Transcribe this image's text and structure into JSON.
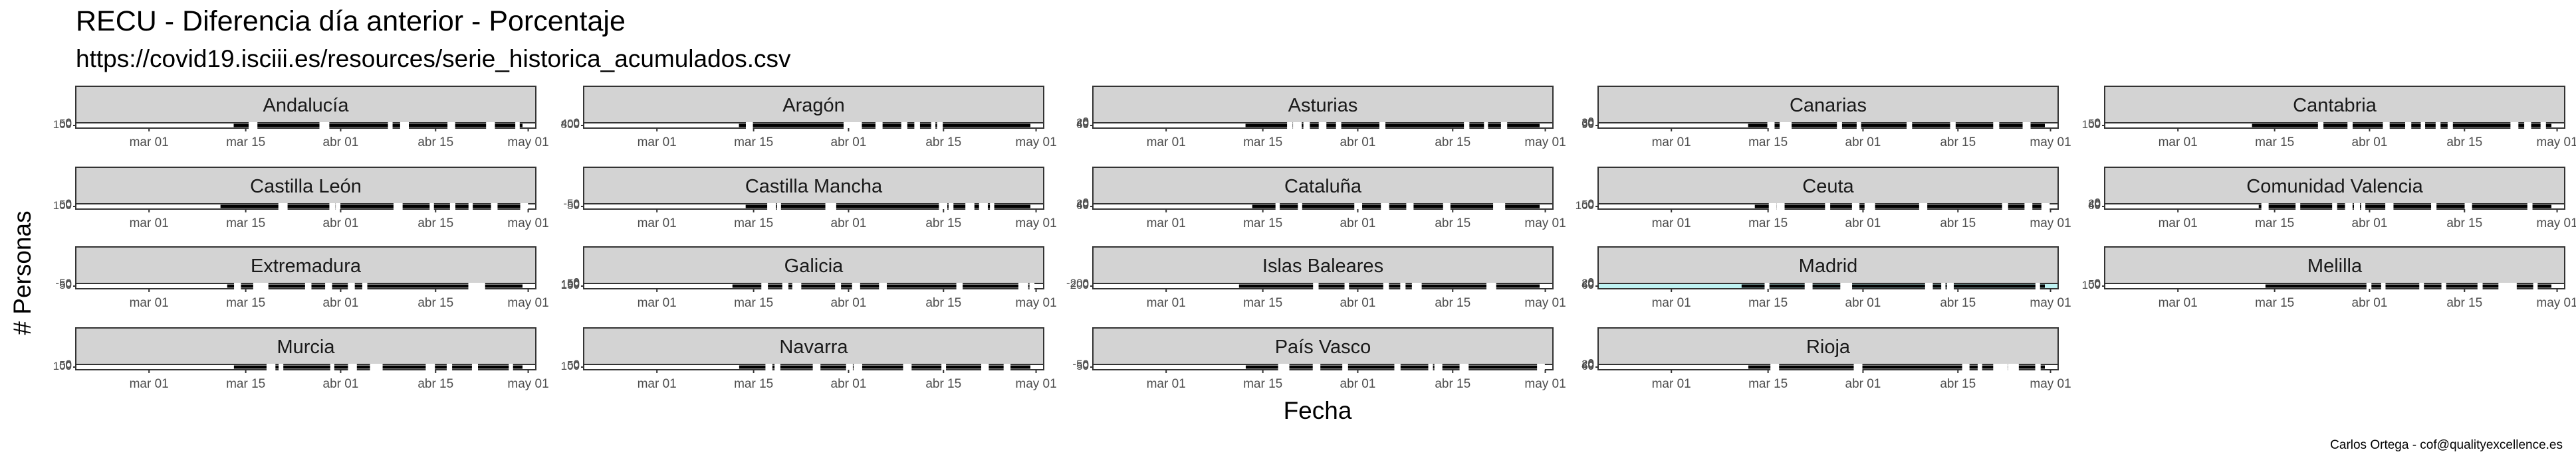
{
  "title": "RECU - Diferencia día anterior - Porcentaje",
  "subtitle": "https://covid19.isciii.es/resources/serie_historica_acumulados.csv",
  "caption": "Carlos Ortega - cof@qualityexcellence.es",
  "chart_data": {
    "type": "line",
    "xlabel": "Fecha",
    "ylabel": "# Personas",
    "x_ticks": [
      "mar 01",
      "mar 15",
      "abr 01",
      "abr 15",
      "may 01"
    ],
    "grid": false,
    "facets": [
      {
        "name": "Andalucía",
        "y_ticks": [
          "100",
          "50",
          "0"
        ],
        "highlight": false
      },
      {
        "name": "Aragón",
        "y_ticks": [
          "800",
          "400",
          "0"
        ],
        "highlight": false
      },
      {
        "name": "Asturias",
        "y_ticks": [
          "60",
          "40",
          "20",
          "0"
        ],
        "highlight": false
      },
      {
        "name": "Canarias",
        "y_ticks": [
          "90",
          "60",
          "30",
          "0"
        ],
        "highlight": false
      },
      {
        "name": "Cantabria",
        "y_ticks": [
          "100",
          "50",
          "0"
        ],
        "highlight": false
      },
      {
        "name": "Castilla León",
        "y_ticks": [
          "100",
          "50",
          "0"
        ],
        "highlight": false
      },
      {
        "name": "Castilla Mancha",
        "y_ticks": [
          "50",
          "0",
          "-50"
        ],
        "highlight": false
      },
      {
        "name": "Cataluña",
        "y_ticks": [
          "60",
          "40",
          "20",
          "0"
        ],
        "highlight": false
      },
      {
        "name": "Ceuta",
        "y_ticks": [
          "100",
          "50",
          "0"
        ],
        "highlight": false
      },
      {
        "name": "Comunidad Valencia",
        "y_ticks": [
          "60",
          "40",
          "20",
          "0"
        ],
        "highlight": false
      },
      {
        "name": "Extremadura",
        "y_ticks": [
          "50",
          "0",
          "-50"
        ],
        "highlight": false
      },
      {
        "name": "Galicia",
        "y_ticks": [
          "150",
          "100",
          "50",
          "0"
        ],
        "highlight": false
      },
      {
        "name": "Islas Baleares",
        "y_ticks": [
          "200",
          "0",
          "-200"
        ],
        "highlight": false
      },
      {
        "name": "Madrid",
        "y_ticks": [
          "60",
          "40",
          "20",
          "0"
        ],
        "highlight": true
      },
      {
        "name": "Melilla",
        "y_ticks": [
          "100",
          "50",
          "0"
        ],
        "highlight": false
      },
      {
        "name": "Murcia",
        "y_ticks": [
          "100",
          "50",
          "0"
        ],
        "highlight": false
      },
      {
        "name": "Navarra",
        "y_ticks": [
          "100",
          "50",
          "0"
        ],
        "highlight": false
      },
      {
        "name": "País Vasco",
        "y_ticks": [
          "50",
          "0",
          "-50"
        ],
        "highlight": false
      },
      {
        "name": "Rioja",
        "y_ticks": [
          "60",
          "40",
          "20",
          "0"
        ],
        "highlight": false
      }
    ]
  }
}
